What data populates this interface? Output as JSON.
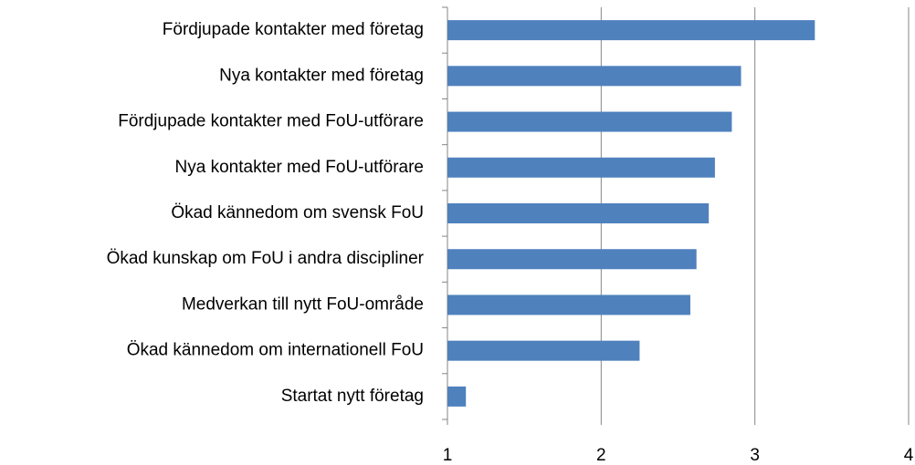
{
  "chart_data": {
    "type": "bar",
    "orientation": "horizontal",
    "categories": [
      "Fördjupade kontakter med företag",
      "Nya kontakter med företag",
      "Fördjupade kontakter med FoU-utförare",
      "Nya kontakter med FoU-utförare",
      "Ökad kännedom om svensk FoU",
      "Ökad kunskap om FoU i andra discipliner",
      "Medverkan till nytt FoU-område",
      "Ökad kännedom om internationell FoU",
      "Startat nytt företag"
    ],
    "values": [
      3.39,
      2.91,
      2.85,
      2.74,
      2.7,
      2.62,
      2.58,
      2.25,
      1.12
    ],
    "color": "#4f81bd",
    "xlim": [
      1,
      4
    ],
    "xticks": [
      1,
      2,
      3,
      4
    ],
    "grid": true
  }
}
